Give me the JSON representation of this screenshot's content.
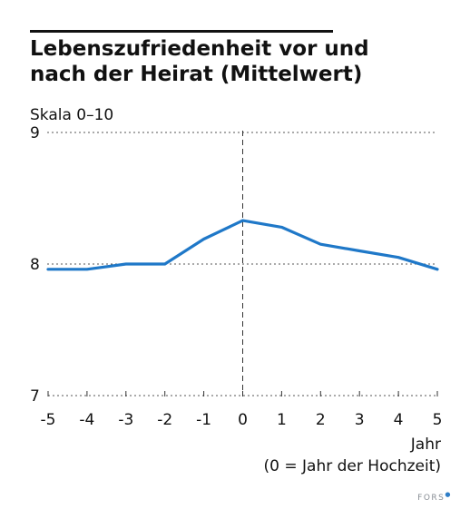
{
  "chart_data": {
    "type": "line",
    "title": "Lebenszufriedenheit vor und nach der Heirat (Mittelwert)",
    "title_lines": [
      "Lebenszufriedenheit vor und",
      "nach der Heirat (Mittelwert)"
    ],
    "scale_label": "Skala 0–10",
    "xlabel_lines": [
      "Jahr",
      "(0 = Jahr der Hochzeit)"
    ],
    "x": [
      -5,
      -4,
      -3,
      -2,
      -1,
      0,
      1,
      2,
      3,
      4,
      5
    ],
    "x_tick_labels": [
      "-5",
      "-4",
      "-3",
      "-2",
      "-1",
      "0",
      "1",
      "2",
      "3",
      "4",
      "5"
    ],
    "y_ticks": [
      7,
      8,
      9
    ],
    "ylim": [
      7,
      9
    ],
    "series": [
      {
        "values": [
          7.96,
          7.96,
          8.0,
          8.0,
          8.19,
          8.33,
          8.28,
          8.15,
          8.1,
          8.05,
          7.96
        ]
      }
    ],
    "line_color": "#1f78c8",
    "grid": "dotted horizontal at 8 and 9",
    "reference_line": {
      "x": 0,
      "style": "dashed"
    }
  },
  "footer": {
    "source": "FORS"
  }
}
